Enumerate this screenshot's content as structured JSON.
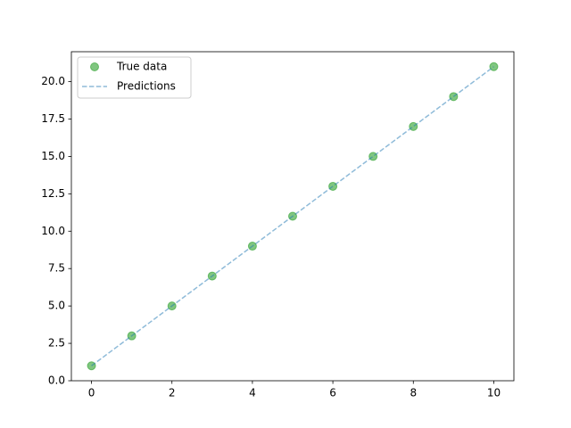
{
  "chart_data": {
    "type": "scatter",
    "x": [
      0,
      1,
      2,
      3,
      4,
      5,
      6,
      7,
      8,
      9,
      10
    ],
    "series": [
      {
        "name": "True data",
        "color": "#2ca02c",
        "marker": "circle",
        "values": [
          1,
          3,
          5,
          7,
          9,
          11,
          13,
          15,
          17,
          19,
          21
        ]
      },
      {
        "name": "Predictions",
        "color": "#1f77b4",
        "linestyle": "dashed",
        "values": [
          1,
          3,
          5,
          7,
          9,
          11,
          13,
          15,
          17,
          19,
          21
        ]
      }
    ],
    "xlim": [
      -0.5,
      10.5
    ],
    "xticks": [
      0,
      2,
      4,
      6,
      8,
      10
    ],
    "ylim": [
      0,
      22
    ],
    "yticks": [
      {
        "value": 0,
        "label": "0.0"
      },
      2.5,
      {
        "value": 5,
        "label": "5.0"
      },
      7.5,
      {
        "value": 10,
        "label": "10.0"
      },
      12.5,
      {
        "value": 15,
        "label": "15.0"
      },
      17.5,
      {
        "value": 20,
        "label": "20.0"
      }
    ],
    "legend": "upper left",
    "grid": false
  }
}
